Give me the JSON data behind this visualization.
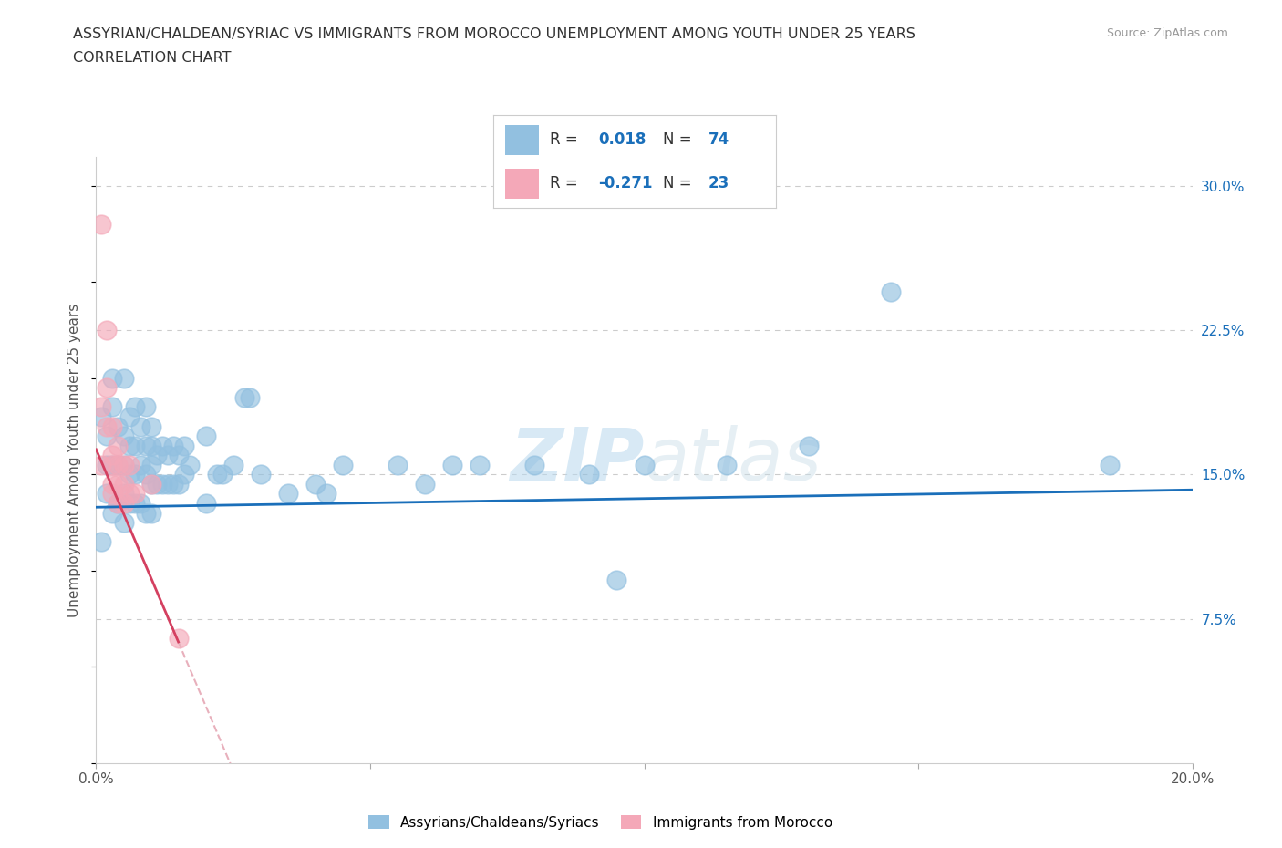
{
  "title_line1": "ASSYRIAN/CHALDEAN/SYRIAC VS IMMIGRANTS FROM MOROCCO UNEMPLOYMENT AMONG YOUTH UNDER 25 YEARS",
  "title_line2": "CORRELATION CHART",
  "source": "Source: ZipAtlas.com",
  "ylabel": "Unemployment Among Youth under 25 years",
  "xlim": [
    0.0,
    0.2
  ],
  "ylim": [
    0.0,
    0.315
  ],
  "R_blue": 0.018,
  "N_blue": 74,
  "R_pink": -0.271,
  "N_pink": 23,
  "color_blue": "#92c0e0",
  "color_pink": "#f4a8b8",
  "trendline_blue_color": "#1a6fba",
  "trendline_pink_color": "#d44060",
  "trendline_pink_dash_color": "#e8b0bc",
  "watermark": "ZIPatlas",
  "blue_scatter_x": [
    0.001,
    0.001,
    0.002,
    0.002,
    0.002,
    0.003,
    0.003,
    0.003,
    0.003,
    0.004,
    0.004,
    0.004,
    0.005,
    0.005,
    0.005,
    0.005,
    0.005,
    0.006,
    0.006,
    0.006,
    0.006,
    0.007,
    0.007,
    0.007,
    0.007,
    0.008,
    0.008,
    0.008,
    0.009,
    0.009,
    0.009,
    0.009,
    0.01,
    0.01,
    0.01,
    0.01,
    0.01,
    0.011,
    0.011,
    0.012,
    0.012,
    0.013,
    0.013,
    0.014,
    0.014,
    0.015,
    0.015,
    0.016,
    0.016,
    0.017,
    0.02,
    0.02,
    0.022,
    0.023,
    0.025,
    0.027,
    0.028,
    0.03,
    0.035,
    0.04,
    0.042,
    0.045,
    0.055,
    0.06,
    0.065,
    0.07,
    0.08,
    0.09,
    0.095,
    0.1,
    0.115,
    0.13,
    0.145,
    0.185
  ],
  "blue_scatter_y": [
    0.18,
    0.115,
    0.17,
    0.155,
    0.14,
    0.2,
    0.185,
    0.155,
    0.13,
    0.175,
    0.155,
    0.135,
    0.2,
    0.17,
    0.155,
    0.14,
    0.125,
    0.18,
    0.165,
    0.15,
    0.135,
    0.185,
    0.165,
    0.15,
    0.135,
    0.175,
    0.155,
    0.135,
    0.185,
    0.165,
    0.15,
    0.13,
    0.175,
    0.165,
    0.155,
    0.145,
    0.13,
    0.16,
    0.145,
    0.165,
    0.145,
    0.16,
    0.145,
    0.165,
    0.145,
    0.16,
    0.145,
    0.165,
    0.15,
    0.155,
    0.17,
    0.135,
    0.15,
    0.15,
    0.155,
    0.19,
    0.19,
    0.15,
    0.14,
    0.145,
    0.14,
    0.155,
    0.155,
    0.145,
    0.155,
    0.155,
    0.155,
    0.15,
    0.095,
    0.155,
    0.155,
    0.165,
    0.245,
    0.155
  ],
  "pink_scatter_x": [
    0.001,
    0.001,
    0.001,
    0.002,
    0.002,
    0.002,
    0.003,
    0.003,
    0.003,
    0.003,
    0.003,
    0.004,
    0.004,
    0.004,
    0.004,
    0.005,
    0.005,
    0.005,
    0.006,
    0.006,
    0.007,
    0.01,
    0.015
  ],
  "pink_scatter_y": [
    0.28,
    0.185,
    0.155,
    0.225,
    0.195,
    0.175,
    0.175,
    0.16,
    0.155,
    0.145,
    0.14,
    0.165,
    0.155,
    0.145,
    0.135,
    0.155,
    0.145,
    0.135,
    0.155,
    0.14,
    0.14,
    0.145,
    0.065
  ]
}
